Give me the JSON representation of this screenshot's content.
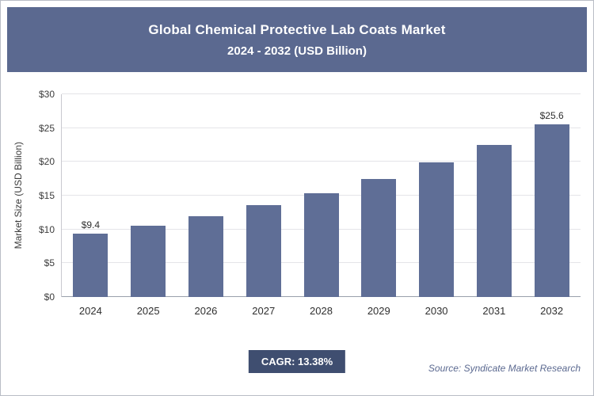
{
  "header": {
    "title": "Global Chemical Protective Lab Coats Market",
    "subtitle": "2024 - 2032 (USD Billion)"
  },
  "footer": {
    "cagr_label": "CAGR: 13.38%",
    "source": "Source: Syndicate Market Research"
  },
  "colors": {
    "header_bg": "#5b6990",
    "bar": "#5f6e96",
    "badge_bg": "#3f4e70",
    "source_text": "#5b6990",
    "gridline": "#e4e4e8",
    "baseline": "#9aa0ab"
  },
  "chart_data": {
    "type": "bar",
    "title": "Global Chemical Protective Lab Coats Market",
    "subtitle": "2024 - 2032 (USD Billion)",
    "categories": [
      "2024",
      "2025",
      "2026",
      "2027",
      "2028",
      "2029",
      "2030",
      "2031",
      "2032"
    ],
    "values": [
      9.4,
      10.6,
      12.0,
      13.6,
      15.4,
      17.5,
      19.9,
      22.5,
      25.6
    ],
    "data_labels": [
      "$9.4",
      "",
      "",
      "",
      "",
      "",
      "",
      "",
      "$25.6"
    ],
    "xlabel": "",
    "ylabel": "Market Size (USD Billion)",
    "ylim": [
      0,
      30
    ],
    "yticks": [
      "$0",
      "$5",
      "$10",
      "$15",
      "$20",
      "$25",
      "$30"
    ],
    "grid": true,
    "legend": "none",
    "cagr": "13.38%"
  }
}
